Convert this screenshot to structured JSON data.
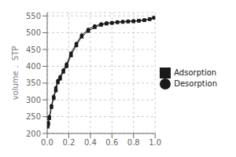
{
  "chart_data": {
    "type": "line",
    "y_label": "volume， STP",
    "x": [
      0.005,
      0.01,
      0.02,
      0.04,
      0.06,
      0.08,
      0.1,
      0.12,
      0.15,
      0.18,
      0.22,
      0.27,
      0.32,
      0.38,
      0.44,
      0.5,
      0.55,
      0.6,
      0.65,
      0.7,
      0.75,
      0.8,
      0.85,
      0.9,
      0.95,
      0.99
    ],
    "series": [
      {
        "name": "Adsorption",
        "color": "#1a1a1a",
        "marker": "square",
        "values": [
          220,
          228,
          245,
          278,
          305,
          328,
          352,
          363,
          383,
          400,
          432,
          462,
          488,
          505,
          516,
          523,
          527,
          529,
          531,
          532,
          533,
          534,
          535,
          537,
          540,
          544
        ]
      },
      {
        "name": "Desorption",
        "color": "#1a1a1a",
        "marker": "circle",
        "values": [
          222,
          232,
          250,
          283,
          310,
          336,
          358,
          369,
          389,
          407,
          439,
          468,
          493,
          510,
          520,
          526,
          529,
          530,
          532,
          533,
          534,
          535,
          536,
          538,
          541,
          545
        ]
      }
    ],
    "xlim": [
      0.0,
      1.0
    ],
    "ylim": [
      200,
      560
    ],
    "xticks": [
      {
        "value": 0.0,
        "label": "0.0"
      },
      0.2,
      0.4,
      0.6,
      0.8,
      {
        "value": 1.0,
        "label": "1.0"
      }
    ],
    "yticks": [
      200,
      250,
      300,
      350,
      400,
      450,
      500,
      550
    ],
    "grid": true,
    "legend": "right"
  }
}
